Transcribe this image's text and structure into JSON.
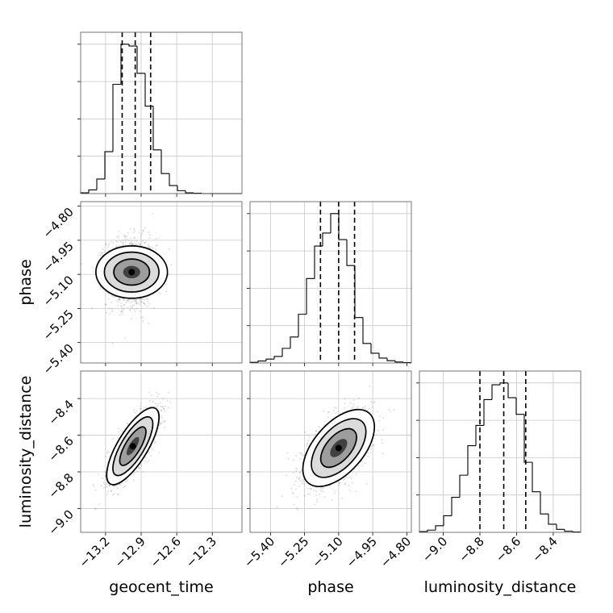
{
  "chart_data": {
    "type": "corner",
    "parameters": [
      "geocent_time",
      "phase",
      "luminosity_distance"
    ],
    "axis_labels": {
      "geocent_time": "geocent_time",
      "phase": "phase",
      "luminosity_distance": "luminosity_distance"
    },
    "ranges": {
      "geocent_time": [
        -13.41,
        -12.05
      ],
      "phase": [
        -5.49,
        -4.78
      ],
      "luminosity_distance": [
        -9.13,
        -8.25
      ]
    },
    "ticks": {
      "geocent_time": [
        -13.2,
        -12.9,
        -12.6,
        -12.3
      ],
      "phase": [
        -5.4,
        -5.25,
        -5.1,
        -4.95,
        -4.8
      ],
      "luminosity_distance": [
        -9.0,
        -8.8,
        -8.6,
        -8.4
      ]
    },
    "tick_labels": {
      "geocent_time": [
        "−13.2",
        "−12.9",
        "−12.6",
        "−12.3"
      ],
      "phase": [
        "−5.40",
        "−5.25",
        "−5.10",
        "−4.95",
        "−4.80"
      ],
      "luminosity_distance": [
        "−9.0",
        "−8.8",
        "−8.6",
        "−8.4"
      ]
    },
    "quantiles": {
      "geocent_time": [
        -13.06,
        -12.95,
        -12.82
      ],
      "phase": [
        -5.18,
        -5.1,
        -5.03
      ],
      "luminosity_distance": [
        -8.8,
        -8.67,
        -8.55
      ]
    },
    "histograms": {
      "geocent_time": {
        "bin_edges": [
          -13.41,
          -13.342,
          -13.274,
          -13.206,
          -13.138,
          -13.07,
          -13.002,
          -12.934,
          -12.866,
          -12.798,
          -12.73,
          -12.662,
          -12.594,
          -12.526,
          -12.458,
          -12.39,
          -12.322,
          -12.254,
          -12.186,
          -12.118,
          -12.05
        ],
        "counts": [
          2,
          10,
          40,
          115,
          300,
          410,
          405,
          330,
          240,
          120,
          55,
          22,
          8,
          2,
          1,
          0,
          0,
          0,
          0,
          0
        ]
      },
      "phase": {
        "bin_edges": [
          -5.49,
          -5.4545,
          -5.419,
          -5.3835,
          -5.348,
          -5.3125,
          -5.277,
          -5.2415,
          -5.206,
          -5.1705,
          -5.135,
          -5.0995,
          -5.064,
          -5.0285,
          -4.993,
          -4.9575,
          -4.922,
          -4.8865,
          -4.851,
          -4.8155,
          -4.78
        ],
        "counts": [
          2,
          6,
          12,
          20,
          45,
          80,
          150,
          260,
          360,
          400,
          460,
          380,
          300,
          140,
          60,
          30,
          15,
          7,
          3,
          1
        ]
      },
      "luminosity_distance": {
        "bin_edges": [
          -9.13,
          -9.086,
          -9.042,
          -8.998,
          -8.954,
          -8.91,
          -8.866,
          -8.822,
          -8.778,
          -8.734,
          -8.69,
          -8.646,
          -8.602,
          -8.558,
          -8.514,
          -8.47,
          -8.426,
          -8.382,
          -8.338,
          -8.294,
          -8.25
        ],
        "counts": [
          2,
          6,
          18,
          45,
          95,
          155,
          235,
          290,
          360,
          400,
          405,
          365,
          320,
          190,
          110,
          50,
          22,
          8,
          3,
          1
        ]
      }
    },
    "pairs": [
      {
        "x": "geocent_time",
        "y": "phase",
        "center": [
          -12.98,
          -5.09
        ],
        "sigma": [
          0.105,
          0.075
        ],
        "corr": 0.0
      },
      {
        "x": "geocent_time",
        "y": "luminosity_distance",
        "center": [
          -12.97,
          -8.66
        ],
        "sigma": [
          0.105,
          0.1
        ],
        "corr": 0.75
      },
      {
        "x": "phase",
        "y": "luminosity_distance",
        "center": [
          -5.1,
          -8.67
        ],
        "sigma": [
          0.075,
          0.1
        ],
        "corr": 0.55
      }
    ],
    "grid": true
  }
}
